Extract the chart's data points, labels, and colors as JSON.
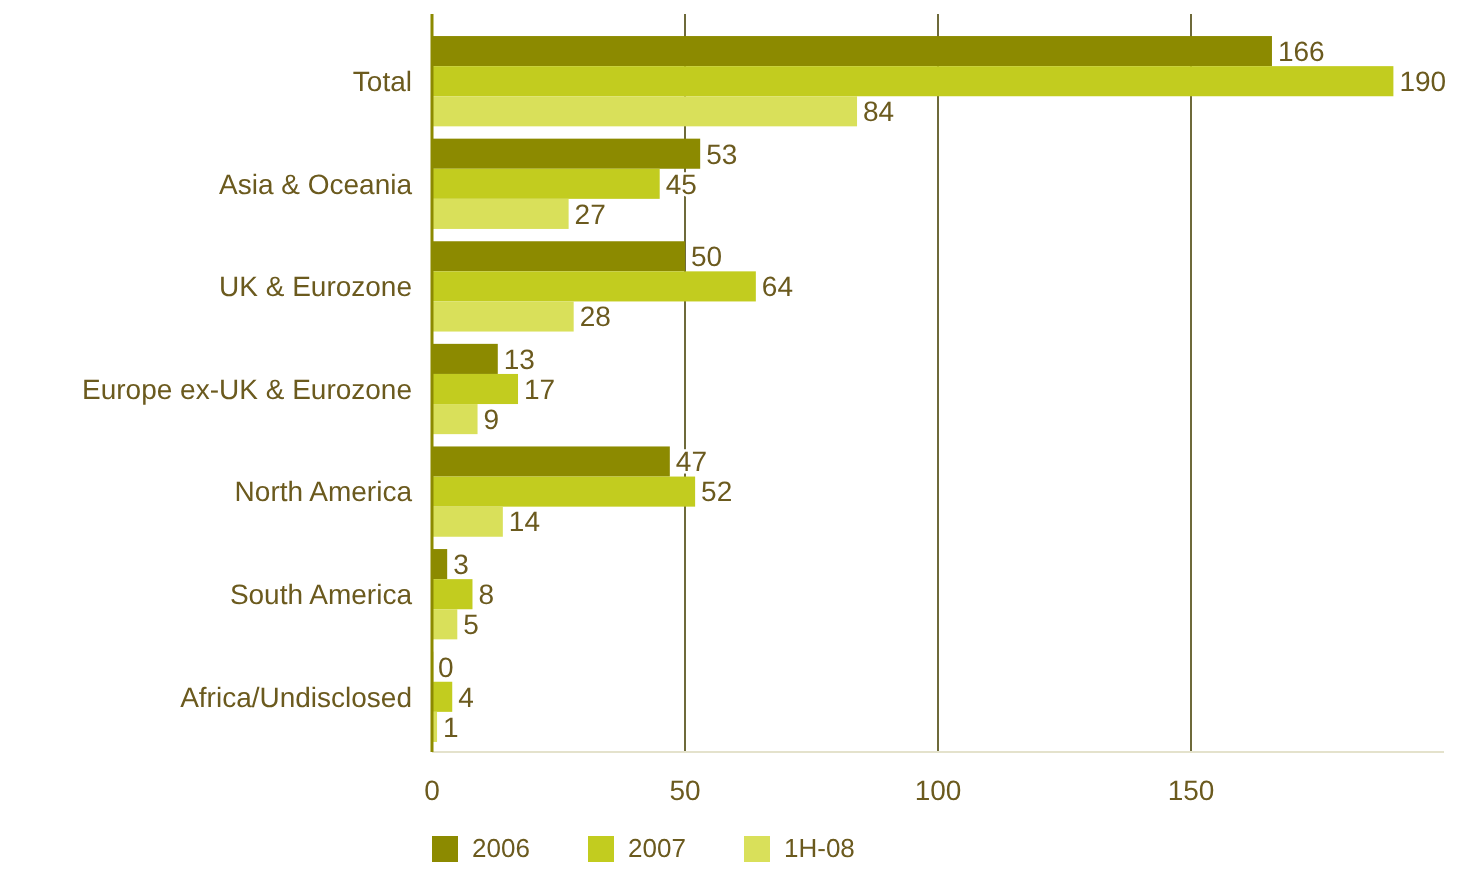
{
  "chart_data": {
    "type": "bar",
    "orientation": "horizontal",
    "categories": [
      "Total",
      "Asia & Oceania",
      "UK & Eurozone",
      "Europe ex-UK & Eurozone",
      "North America",
      "South America",
      "Africa/Undisclosed"
    ],
    "series": [
      {
        "name": "2006",
        "color": "#8c8a00",
        "values": [
          166,
          53,
          50,
          13,
          47,
          3,
          0
        ]
      },
      {
        "name": "2007",
        "color": "#c2cc1f",
        "values": [
          190,
          45,
          64,
          17,
          52,
          8,
          4
        ]
      },
      {
        "name": "1H-08",
        "color": "#d9e05a",
        "values": [
          84,
          27,
          28,
          9,
          14,
          5,
          1
        ]
      }
    ],
    "xlim": [
      0,
      200
    ],
    "xticks": [
      0,
      50,
      100,
      150
    ],
    "grid": "x",
    "legend": "bottom left",
    "data_labels": true
  }
}
